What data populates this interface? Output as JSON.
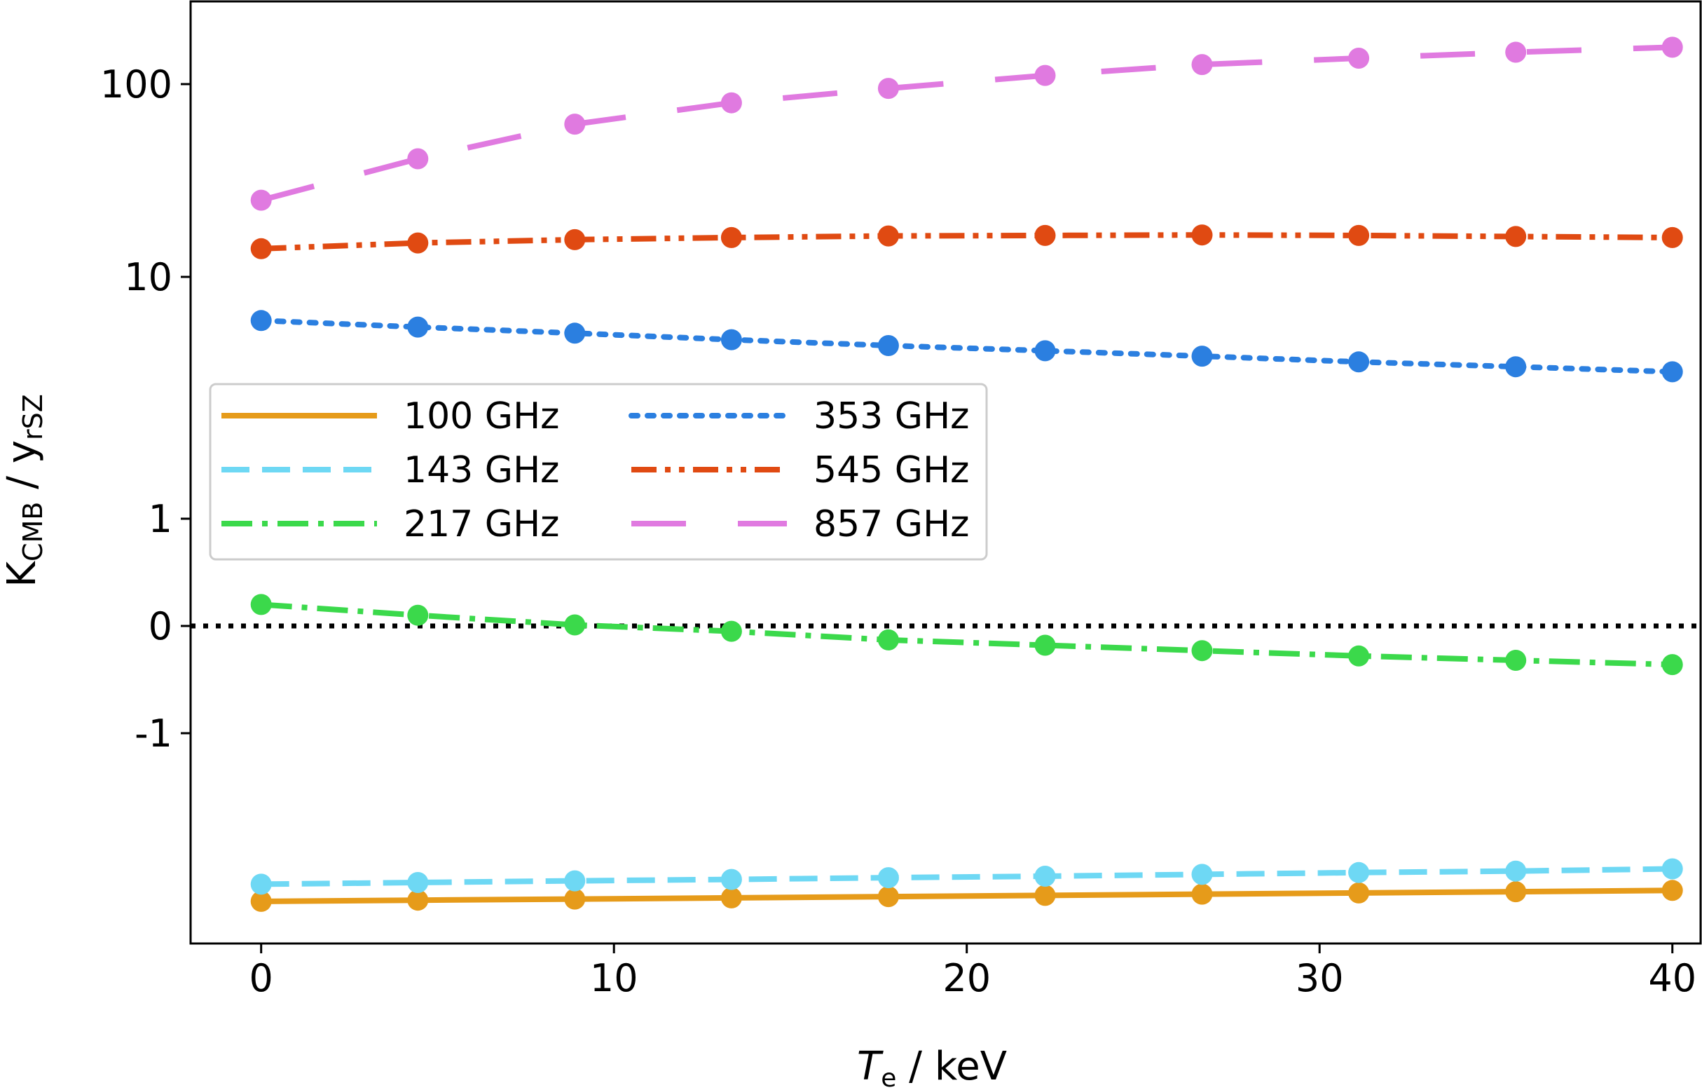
{
  "chart_data": {
    "type": "line",
    "xlabel": "T",
    "xlabel_sub": "e",
    "xlabel_unit": " / keV",
    "ylabel": "K",
    "ylabel_sub1": "CMB",
    "ylabel_mid": " / y",
    "ylabel_sub2": "rSZ",
    "y_scale": "symlog",
    "xlim": [
      -2,
      40.8
    ],
    "x_ticks": [
      0,
      10,
      20,
      30,
      40
    ],
    "x_tick_labels": [
      "0",
      "10",
      "20",
      "30",
      "40"
    ],
    "y_ticks": [
      100,
      10,
      1,
      0,
      -1
    ],
    "y_tick_labels": [
      "100",
      "10",
      "1",
      "0",
      "-1"
    ],
    "zero_line": true,
    "legend_position": "center-left",
    "x": [
      0,
      4.44,
      8.89,
      13.33,
      17.78,
      22.22,
      26.67,
      31.11,
      35.56,
      40
    ],
    "series": [
      {
        "name": "100 GHz",
        "color": "#e69b1a",
        "dash": "solid",
        "values": [
          -4.1,
          -4.06,
          -4.02,
          -3.98,
          -3.94,
          -3.9,
          -3.86,
          -3.82,
          -3.78,
          -3.74
        ]
      },
      {
        "name": "143 GHz",
        "color": "#6ed8f4",
        "dash": "dashed",
        "values": [
          -3.55,
          -3.5,
          -3.45,
          -3.41,
          -3.36,
          -3.32,
          -3.27,
          -3.22,
          -3.18,
          -3.12
        ]
      },
      {
        "name": "217 GHz",
        "color": "#3bd94b",
        "dash": "dashdot",
        "values": [
          0.2,
          0.1,
          0.01,
          -0.05,
          -0.13,
          -0.18,
          -0.23,
          -0.28,
          -0.32,
          -0.36
        ]
      },
      {
        "name": "353 GHz",
        "color": "#2b7fe0",
        "dash": "dotted",
        "values": [
          6.6,
          6.2,
          5.85,
          5.5,
          5.2,
          4.95,
          4.7,
          4.45,
          4.25,
          4.05
        ]
      },
      {
        "name": "545 GHz",
        "color": "#e04a12",
        "dash": "dashdotdot",
        "values": [
          14.0,
          15.0,
          15.6,
          16.0,
          16.3,
          16.4,
          16.5,
          16.4,
          16.2,
          16.0
        ]
      },
      {
        "name": "857 GHz",
        "color": "#e07ae0",
        "dash": "longdash",
        "values": [
          25,
          41,
          62,
          80,
          95,
          110,
          124,
          133,
          142,
          150
        ]
      }
    ]
  }
}
